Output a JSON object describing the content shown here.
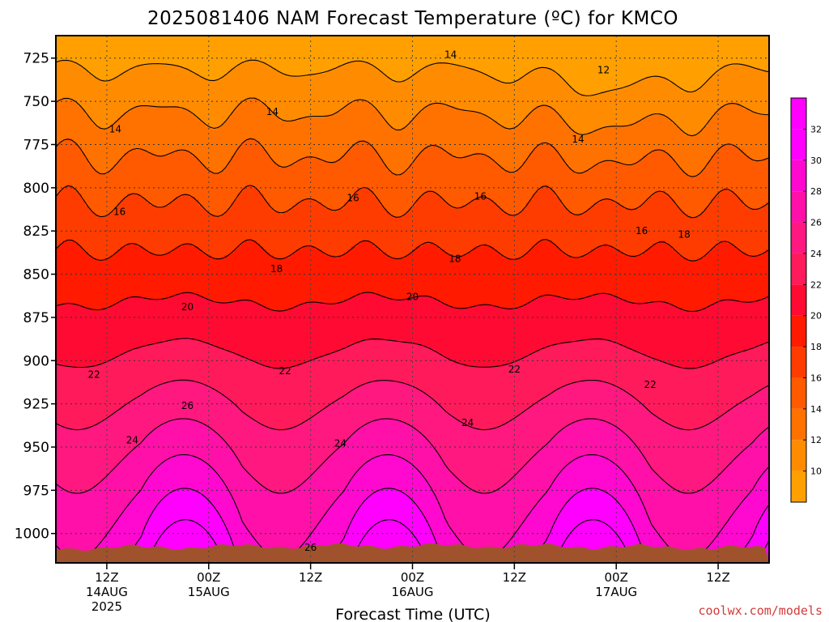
{
  "title": "2025081406 NAM Forecast Temperature (ºC) for KMCO",
  "xlabel": "Forecast Time (UTC)",
  "credit": "coolwx.com/models",
  "chart_data": {
    "type": "heatmap",
    "subtype": "filled-contour time-height cross section",
    "title": "2025081406 NAM Forecast Temperature (ºC) for KMCO",
    "xlabel": "Forecast Time (UTC)",
    "ylabel": "",
    "x_unit": "forecast hour from 2025-08-14 06Z",
    "xlim": [
      0,
      84
    ],
    "y_scale": "pressure (hPa), increasing downward",
    "ylim": [
      712,
      1017
    ],
    "x_ticks": [
      {
        "hour": 6,
        "lines": [
          "12Z",
          "14AUG",
          "2025"
        ]
      },
      {
        "hour": 18,
        "lines": [
          "00Z",
          "15AUG"
        ]
      },
      {
        "hour": 30,
        "lines": [
          "12Z"
        ]
      },
      {
        "hour": 42,
        "lines": [
          "00Z",
          "16AUG"
        ]
      },
      {
        "hour": 54,
        "lines": [
          "12Z"
        ]
      },
      {
        "hour": 66,
        "lines": [
          "00Z",
          "17AUG"
        ]
      },
      {
        "hour": 78,
        "lines": [
          "12Z"
        ]
      }
    ],
    "y_ticks": [
      725,
      750,
      775,
      800,
      825,
      850,
      875,
      900,
      925,
      950,
      975,
      1000
    ],
    "grid": "dotted",
    "colorbar": {
      "ticks": [
        10,
        12,
        14,
        16,
        18,
        20,
        22,
        24,
        26,
        28,
        30,
        32
      ],
      "range": [
        8,
        34
      ],
      "step": 2,
      "colors": [
        "#ffa000",
        "#ff8c00",
        "#ff7200",
        "#ff5a00",
        "#ff3c00",
        "#ff1a00",
        "#ff0a32",
        "#ff1a5c",
        "#ff1880",
        "#ff10a8",
        "#ff08d0",
        "#ff00ff",
        "#ff00ff"
      ],
      "placement": "right"
    },
    "contour_labels": [
      {
        "value": 12,
        "x_hour": 64.5,
        "y": 732
      },
      {
        "value": 14,
        "x_hour": 46.5,
        "y": 723
      },
      {
        "value": 14,
        "x_hour": 25.5,
        "y": 756
      },
      {
        "value": 14,
        "x_hour": 7,
        "y": 766
      },
      {
        "value": 14,
        "x_hour": 61.5,
        "y": 772
      },
      {
        "value": 16,
        "x_hour": 7.5,
        "y": 814
      },
      {
        "value": 16,
        "x_hour": 35,
        "y": 806
      },
      {
        "value": 16,
        "x_hour": 50,
        "y": 805
      },
      {
        "value": 16,
        "x_hour": 69,
        "y": 825
      },
      {
        "value": 18,
        "x_hour": 26,
        "y": 847
      },
      {
        "value": 18,
        "x_hour": 47,
        "y": 841
      },
      {
        "value": 18,
        "x_hour": 74,
        "y": 827
      },
      {
        "value": 20,
        "x_hour": 15.5,
        "y": 869
      },
      {
        "value": 20,
        "x_hour": 42,
        "y": 863
      },
      {
        "value": 22,
        "x_hour": 4.5,
        "y": 908
      },
      {
        "value": 22,
        "x_hour": 27,
        "y": 906
      },
      {
        "value": 22,
        "x_hour": 54,
        "y": 905
      },
      {
        "value": 22,
        "x_hour": 70,
        "y": 914
      },
      {
        "value": 24,
        "x_hour": 9,
        "y": 946
      },
      {
        "value": 24,
        "x_hour": 33.5,
        "y": 948
      },
      {
        "value": 24,
        "x_hour": 48.5,
        "y": 936
      },
      {
        "value": 26,
        "x_hour": 15.5,
        "y": 926
      },
      {
        "value": 26,
        "x_hour": 30,
        "y": 1008
      }
    ],
    "surface_fill": "#a0522d"
  }
}
